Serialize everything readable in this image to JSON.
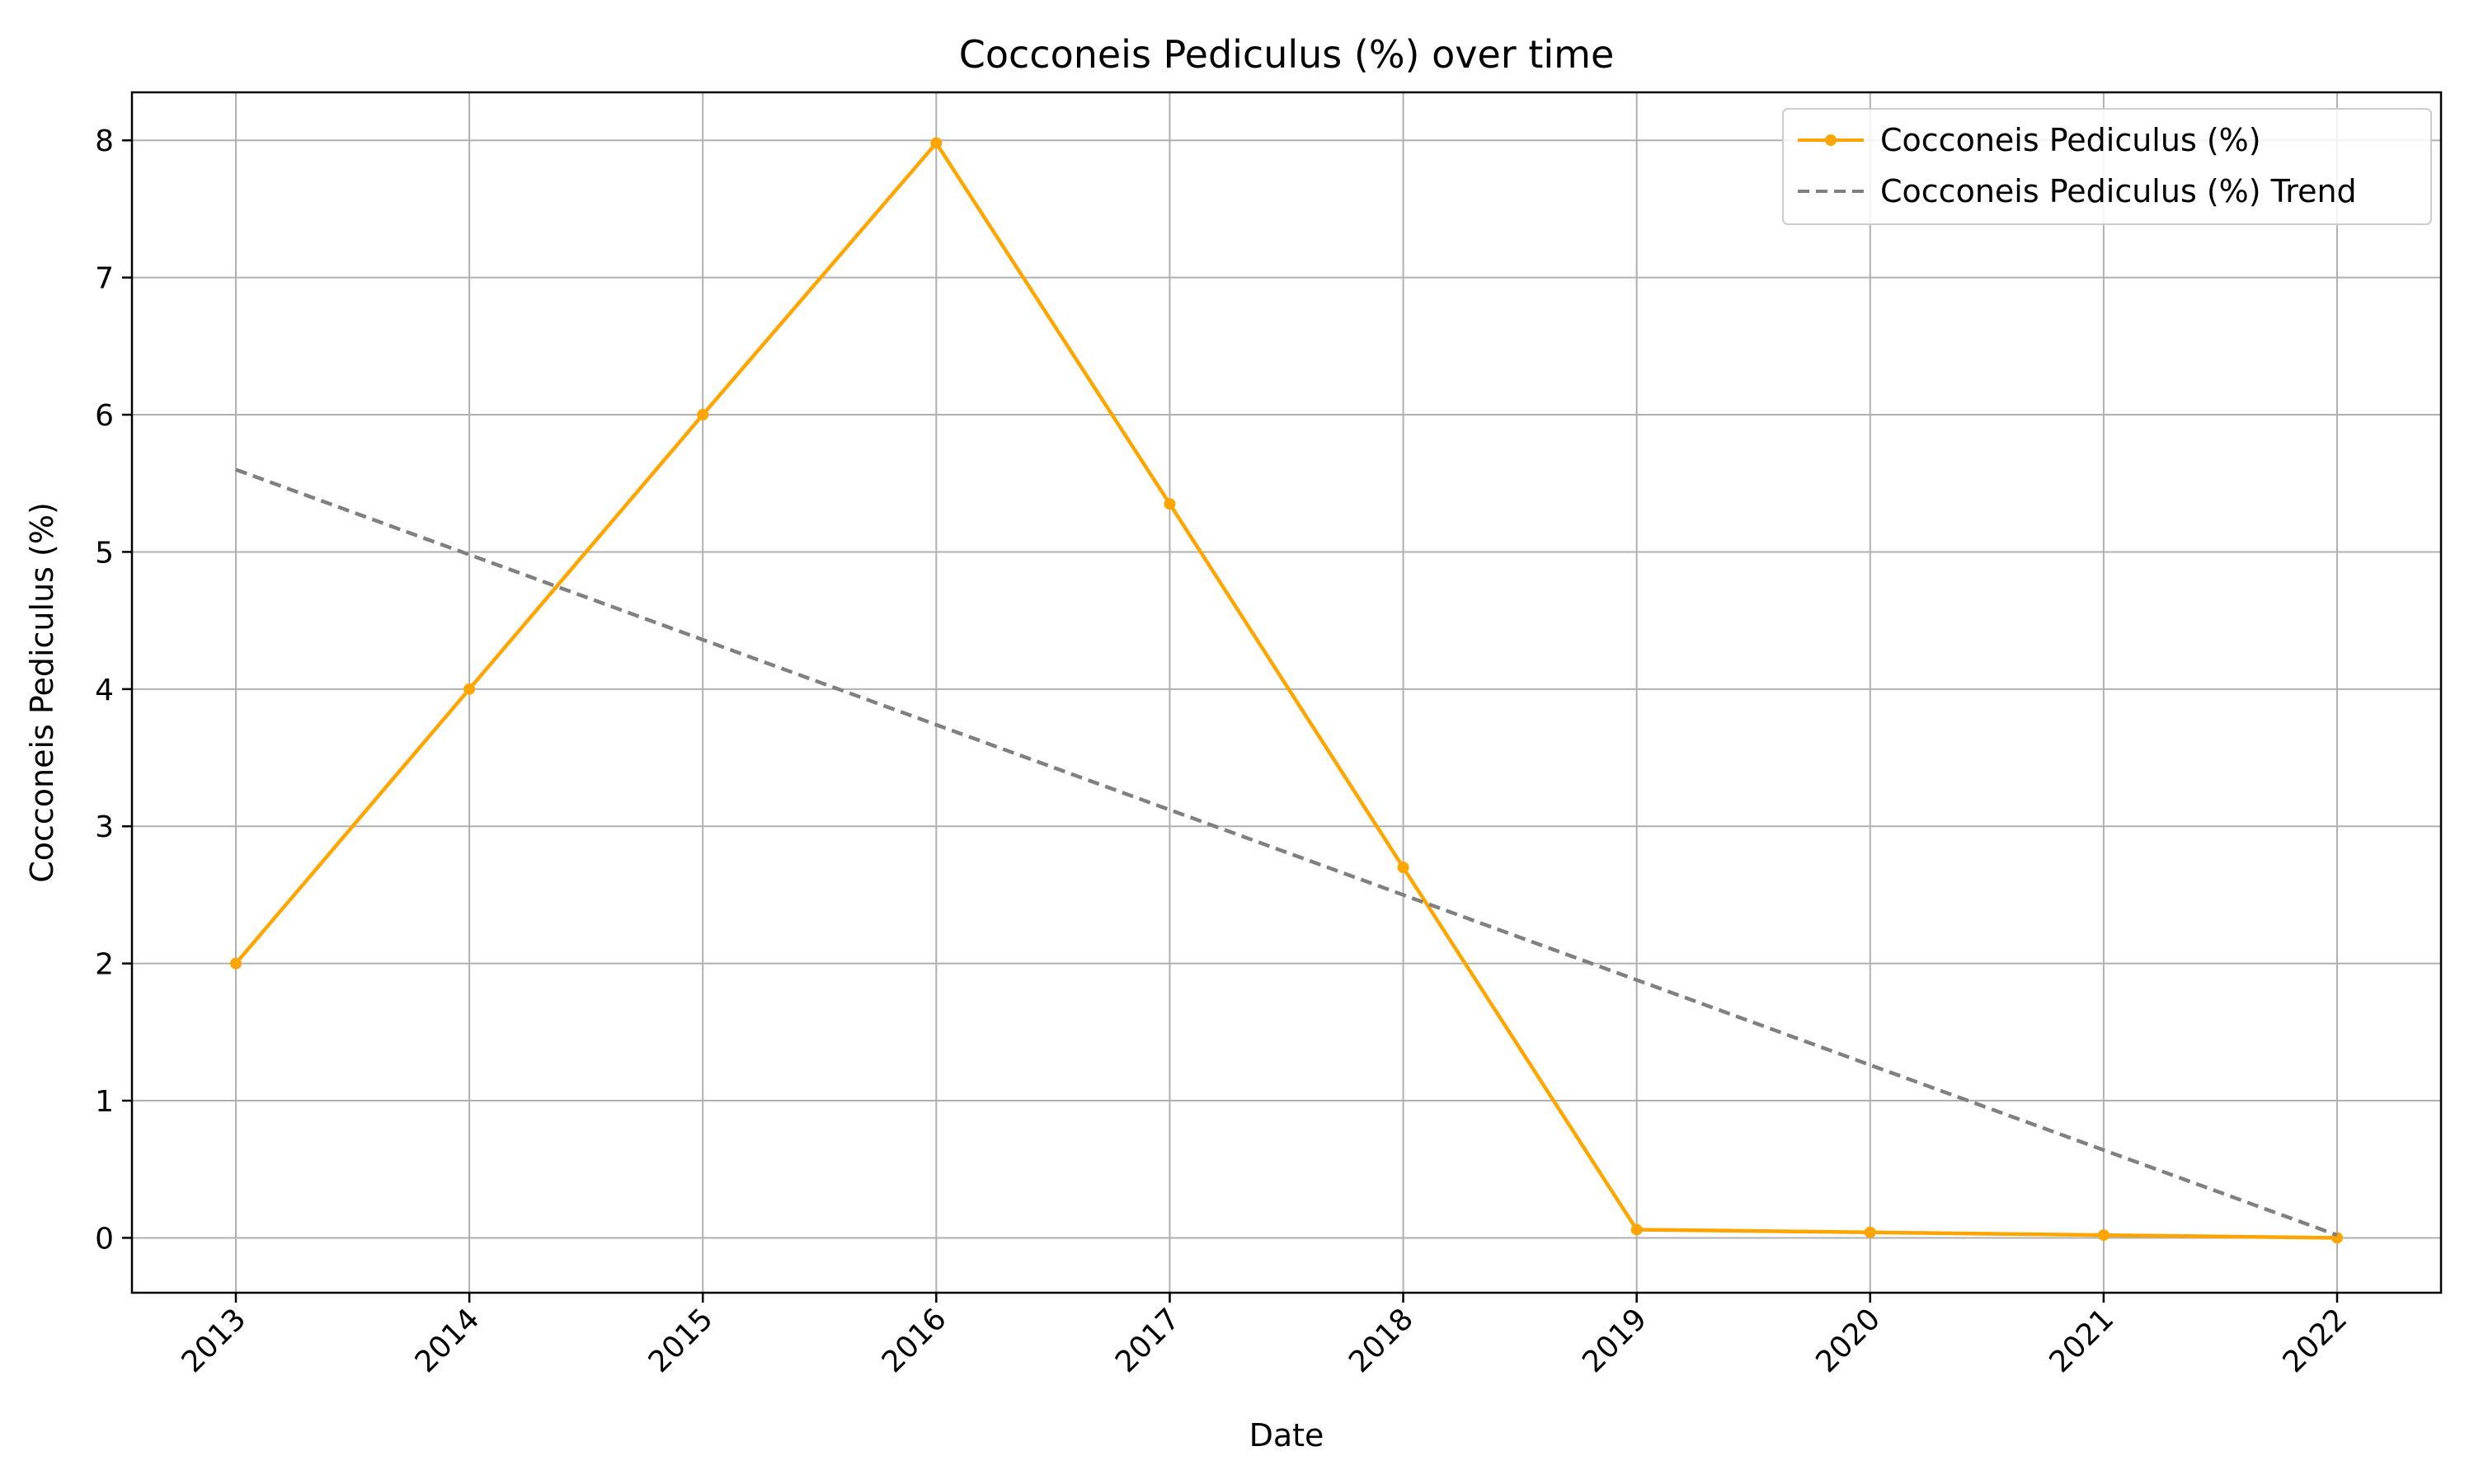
{
  "chart_data": {
    "type": "line",
    "title": "Cocconeis Pediculus (%) over time",
    "xlabel": "Date",
    "ylabel": "Cocconeis Pediculus (%)",
    "x": [
      "2013",
      "2014",
      "2015",
      "2016",
      "2017",
      "2018",
      "2019",
      "2020",
      "2021",
      "2022"
    ],
    "ylim": [
      -0.4,
      8.35
    ],
    "yticks": [
      0,
      1,
      2,
      3,
      4,
      5,
      6,
      7,
      8
    ],
    "grid": true,
    "legend_position": "top-right",
    "series": [
      {
        "name": "Cocconeis Pediculus (%)",
        "values": [
          2.0,
          4.0,
          6.0,
          7.98,
          5.35,
          2.7,
          0.06,
          0.04,
          0.02,
          0.0
        ],
        "color": "#ffa500",
        "style": "solid",
        "marker": "circle"
      },
      {
        "name": "Cocconeis Pediculus (%) Trend",
        "values": [
          5.6,
          4.98,
          4.36,
          3.74,
          3.12,
          2.5,
          1.88,
          1.26,
          0.64,
          0.02
        ],
        "color": "#808080",
        "style": "dashed",
        "marker": "none"
      }
    ]
  }
}
